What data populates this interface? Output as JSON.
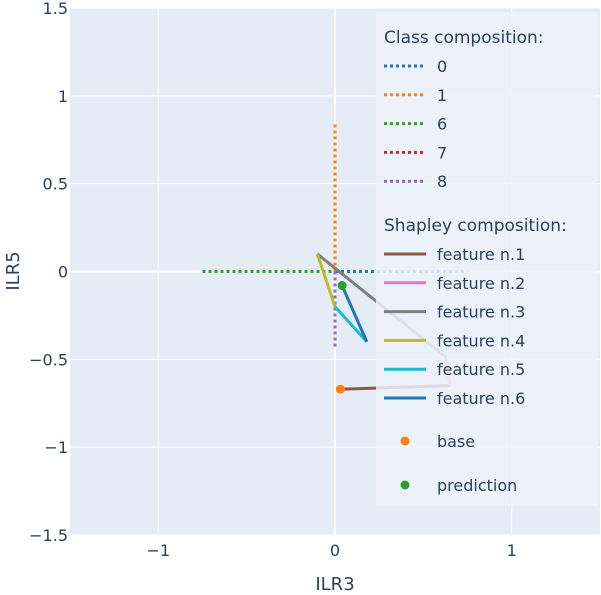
{
  "chart_data": {
    "type": "line",
    "xlabel": "ILR3",
    "ylabel": "ILR5",
    "xlim": [
      -1.5,
      1.5
    ],
    "ylim": [
      -1.5,
      1.5
    ],
    "x_ticks": [
      -1,
      0,
      1
    ],
    "x_tick_labels": [
      "−1",
      "0",
      "1"
    ],
    "y_ticks": [
      -1.5,
      -1,
      -0.5,
      0,
      0.5,
      1,
      1.5
    ],
    "y_tick_labels": [
      "−1.5",
      "−1",
      "−0.5",
      "0",
      "0.5",
      "1",
      "1.5"
    ],
    "grid": true,
    "legend_position": "top-right",
    "colors": {
      "plot_bg": "#e5ecf6",
      "grid": "#ffffff",
      "legend_bg": "#eef2fa"
    },
    "class_composition": {
      "title": "Class composition:",
      "series": [
        {
          "name": "0",
          "color": "#1f77b4",
          "dash": "dotted",
          "x": [
            0,
            0.75
          ],
          "y": [
            0,
            0
          ]
        },
        {
          "name": "1",
          "color": "#ff7f0e",
          "dash": "dotted",
          "x": [
            0,
            0
          ],
          "y": [
            0,
            0.85
          ]
        },
        {
          "name": "6",
          "color": "#2ca02c",
          "dash": "dotted",
          "x": [
            -0.75,
            0
          ],
          "y": [
            0,
            0
          ]
        },
        {
          "name": "7",
          "color": "#d62728",
          "dash": "dotted",
          "x": [
            0,
            0
          ],
          "y": [
            0,
            0
          ]
        },
        {
          "name": "8",
          "color": "#9467bd",
          "dash": "dotted",
          "x": [
            0,
            0
          ],
          "y": [
            0,
            -0.43
          ]
        }
      ]
    },
    "shapley_composition": {
      "title": "Shapley composition:",
      "series": [
        {
          "name": "feature n.1",
          "color": "#8c564b",
          "x": [
            0.03,
            0.65
          ],
          "y": [
            -0.67,
            -0.65
          ]
        },
        {
          "name": "feature n.2",
          "color": "#e377c2",
          "x": [
            0.65,
            0.63
          ],
          "y": [
            -0.65,
            -0.49
          ]
        },
        {
          "name": "feature n.3",
          "color": "#7f7f7f",
          "x": [
            0.63,
            -0.1
          ],
          "y": [
            -0.49,
            0.1
          ]
        },
        {
          "name": "feature n.4",
          "color": "#bcbd22",
          "x": [
            -0.1,
            0.0
          ],
          "y": [
            0.1,
            -0.2
          ]
        },
        {
          "name": "feature n.5",
          "color": "#17becf",
          "x": [
            0.0,
            0.18
          ],
          "y": [
            -0.2,
            -0.4
          ]
        },
        {
          "name": "feature n.6",
          "color": "#1f77b4",
          "x": [
            0.18,
            0.04
          ],
          "y": [
            -0.4,
            -0.08
          ]
        }
      ]
    },
    "markers": [
      {
        "name": "base",
        "color": "#ff7f0e",
        "x": 0.03,
        "y": -0.67
      },
      {
        "name": "prediction",
        "color": "#2ca02c",
        "x": 0.04,
        "y": -0.08
      }
    ]
  }
}
